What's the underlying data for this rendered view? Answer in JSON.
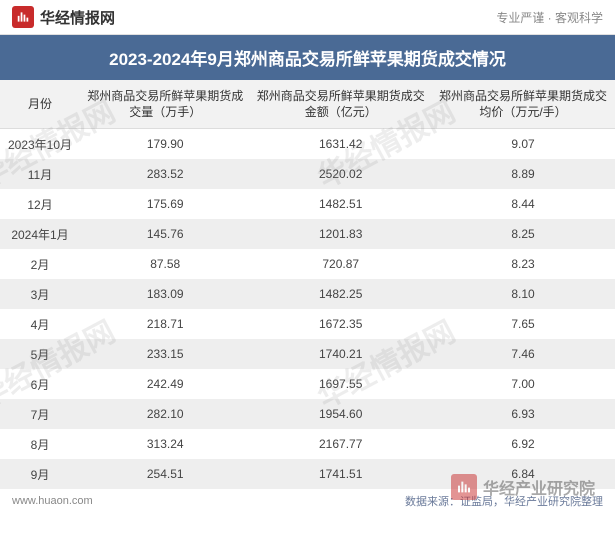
{
  "header": {
    "brand_text": "华经情报网",
    "tagline": "专业严谨 · 客观科学"
  },
  "title": "2023-2024年9月郑州商品交易所鲜苹果期货成交情况",
  "table": {
    "columns": [
      "月份",
      "郑州商品交易所鲜苹果期货成交量（万手）",
      "郑州商品交易所鲜苹果期货成交金额（亿元）",
      "郑州商品交易所鲜苹果期货成交均价（万元/手）"
    ],
    "rows": [
      [
        "2023年10月",
        "179.90",
        "1631.42",
        "9.07"
      ],
      [
        "11月",
        "283.52",
        "2520.02",
        "8.89"
      ],
      [
        "12月",
        "175.69",
        "1482.51",
        "8.44"
      ],
      [
        "2024年1月",
        "145.76",
        "1201.83",
        "8.25"
      ],
      [
        "2月",
        "87.58",
        "720.87",
        "8.23"
      ],
      [
        "3月",
        "183.09",
        "1482.25",
        "8.10"
      ],
      [
        "4月",
        "218.71",
        "1672.35",
        "7.65"
      ],
      [
        "5月",
        "233.15",
        "1740.21",
        "7.46"
      ],
      [
        "6月",
        "242.49",
        "1697.55",
        "7.00"
      ],
      [
        "7月",
        "282.10",
        "1954.60",
        "6.93"
      ],
      [
        "8月",
        "313.24",
        "2167.77",
        "6.92"
      ],
      [
        "9月",
        "254.51",
        "1741.51",
        "6.84"
      ]
    ]
  },
  "footer": {
    "url": "www.huaon.com",
    "source": "数据来源：证监局，华经产业研究院整理"
  },
  "watermark": {
    "text": "华经情报网",
    "logo_text": "华经产业研究院"
  },
  "styling": {
    "title_bg": "#4a6a95",
    "title_color": "#ffffff",
    "alt_row_bg": "#eeeeee",
    "header_row_bg": "#f2f2f2",
    "brand_icon_bg": "#c82b2b",
    "text_color": "#444444",
    "source_color": "#6a7a9a",
    "watermark_color": "rgba(130,130,130,0.14)",
    "font_family": "Microsoft YaHei",
    "title_fontsize": 17,
    "body_fontsize": 12,
    "footer_fontsize": 11
  }
}
